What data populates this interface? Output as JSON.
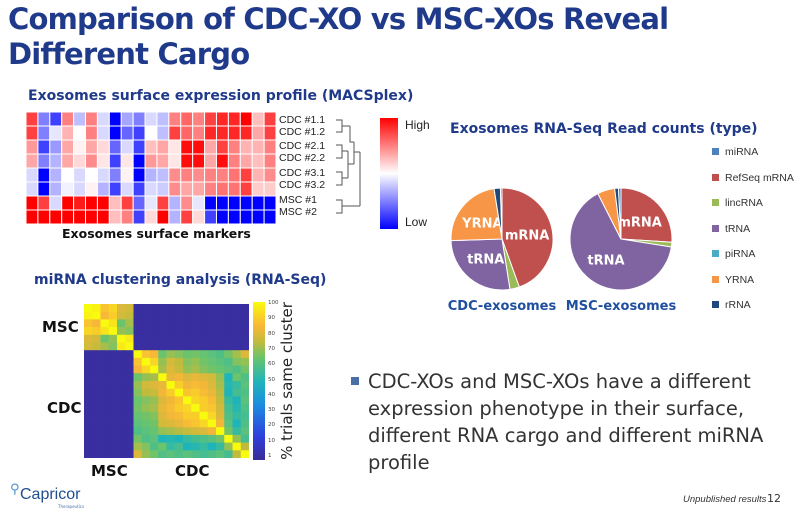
{
  "title": "Comparison of CDC-XO vs MSC-XOs Reveal Different Cargo",
  "macsplex": {
    "heading": "Exosomes surface expression profile (MACSplex)",
    "xlabel": "Exosomes surface markers",
    "scale_high": "High",
    "scale_low": "Low",
    "colors": {
      "high": "#ff0000",
      "mid": "#ffffff",
      "low": "#0000ff"
    }
  },
  "rnaseq": {
    "heading": "Exosomes RNA-Seq Read counts (type)",
    "legend": [
      {
        "label": "miRNA",
        "color": "#4f81bd"
      },
      {
        "label": "RefSeq mRNA",
        "color": "#c0504d"
      },
      {
        "label": "lincRNA",
        "color": "#9bbb59"
      },
      {
        "label": "tRNA",
        "color": "#8064a2"
      },
      {
        "label": "piRNA",
        "color": "#4bacc6"
      },
      {
        "label": "YRNA",
        "color": "#f79646"
      },
      {
        "label": "rRNA",
        "color": "#1f497d"
      }
    ]
  },
  "mirna": {
    "heading": "miRNA clustering analysis  (RNA-Seq)",
    "row_labels": [
      "MSC",
      "CDC"
    ],
    "col_labels": [
      "MSC",
      "CDC"
    ],
    "colorbar_label": "% trials same cluster",
    "colorbar_ticks": [
      "100",
      "90",
      "80",
      "70",
      "60",
      "50",
      "40",
      "30",
      "20",
      "10",
      "1"
    ]
  },
  "bullet": "CDC-XOs and MSC-XOs have a different expression phenotype in their surface, different RNA cargo and different miRNA profile",
  "footer": {
    "logo": "Capricor",
    "logo_sub": "Therapeutics",
    "note": "Unpublished results",
    "page": "12"
  },
  "chart_data": [
    {
      "type": "heatmap",
      "title": "Exosomes surface expression profile (MACSplex)",
      "xlabel": "Exosomes surface markers",
      "rows": [
        "CDC #1.1",
        "CDC #1.2",
        "CDC #2.1",
        "CDC #2.2",
        "CDC #3.1",
        "CDC #3.2",
        "MSC #1",
        "MSC #2"
      ],
      "range": [
        -2,
        2
      ],
      "values": [
        [
          1.5,
          -1,
          -1.5,
          1,
          -0.5,
          1,
          -0.3,
          -2,
          -0.7,
          -1,
          -0.3,
          -0.5,
          1,
          1.2,
          1,
          1.5,
          1.7,
          1.7,
          2,
          0.5,
          1.5
        ],
        [
          1.5,
          -1,
          -0.2,
          0.6,
          0,
          1,
          -0.3,
          -2,
          -1.2,
          -1.5,
          0,
          -0.5,
          1.5,
          1.2,
          1,
          1.7,
          1.7,
          1.7,
          1.7,
          0.7,
          1.5
        ],
        [
          0.8,
          -1.5,
          -0.8,
          0.7,
          0.1,
          0.7,
          0.3,
          -1.2,
          -0.3,
          -1.5,
          0.5,
          0.7,
          0.2,
          1.9,
          1.9,
          0.7,
          1.5,
          1,
          0.6,
          0.6,
          1
        ],
        [
          0.7,
          -1,
          -0.6,
          0.7,
          0.3,
          0.9,
          0.2,
          -1.5,
          0.2,
          -2,
          0.8,
          0.7,
          0.2,
          1.9,
          1.9,
          0.7,
          1.9,
          1,
          0.7,
          0.5,
          1
        ],
        [
          -0.3,
          -2,
          -0.6,
          0,
          -0.3,
          0,
          -0.3,
          -1,
          0.1,
          -2,
          -0.6,
          -0.5,
          0.9,
          1,
          0.9,
          1,
          1,
          1.1,
          1.5,
          0.6,
          0.9
        ],
        [
          -0.3,
          -2,
          -0.6,
          -0.1,
          -0.3,
          0.1,
          -0.6,
          -1.5,
          -0.3,
          -1.5,
          -0.3,
          -0.4,
          0.9,
          0.7,
          0.7,
          1,
          1.1,
          1.1,
          1.5,
          0.4,
          0.4
        ],
        [
          2,
          1.5,
          -0.3,
          2,
          1.8,
          2,
          2,
          0.5,
          1.5,
          -1.2,
          -0.2,
          1.5,
          -0.6,
          0.9,
          -0.2,
          -2,
          -2,
          -2,
          -2,
          -2,
          -2
        ],
        [
          2,
          2,
          2,
          2,
          2,
          2,
          2,
          0.5,
          1,
          -1.5,
          0.3,
          2,
          -0.6,
          1.5,
          0.3,
          -1.5,
          -2,
          -2,
          -2,
          -2,
          -2
        ]
      ]
    },
    {
      "type": "pie",
      "title": "CDC-exosomes",
      "labels": [
        "miRNA",
        "RefSeq mRNA",
        "lincRNA",
        "tRNA",
        "YRNA",
        "rRNA"
      ],
      "slice_text": {
        "RefSeq mRNA": "mRNA",
        "tRNA": "tRNA",
        "YRNA": "YRNA"
      },
      "values": [
        0.5,
        44.5,
        3,
        27,
        23,
        2
      ]
    },
    {
      "type": "pie",
      "title": "MSC-exosomes",
      "labels": [
        "miRNA",
        "RefSeq mRNA",
        "lincRNA",
        "tRNA",
        "YRNA",
        "rRNA"
      ],
      "slice_text": {
        "RefSeq mRNA": "mRNA",
        "tRNA": "tRNA"
      },
      "values": [
        0.8,
        26,
        1.5,
        65,
        5.5,
        1.2
      ]
    },
    {
      "type": "heatmap",
      "title": "miRNA clustering analysis  (RNA-Seq)",
      "groups": [
        {
          "name": "MSC",
          "n": 6
        },
        {
          "name": "CDC",
          "n": 14
        }
      ],
      "colorbar_label": "% trials same cluster",
      "range": [
        1,
        100
      ],
      "between_group_value": 3,
      "msc_block": [
        [
          100,
          98,
          88,
          92,
          80,
          78
        ],
        [
          98,
          100,
          85,
          90,
          78,
          76
        ],
        [
          88,
          85,
          100,
          95,
          65,
          72
        ],
        [
          92,
          90,
          95,
          100,
          70,
          68
        ],
        [
          80,
          78,
          65,
          70,
          100,
          96
        ],
        [
          78,
          76,
          72,
          68,
          96,
          100
        ]
      ],
      "cdc_block": [
        [
          100,
          88,
          85,
          65,
          70,
          68,
          65,
          66,
          64,
          62,
          60,
          66,
          72,
          80
        ],
        [
          88,
          100,
          92,
          70,
          78,
          75,
          68,
          70,
          66,
          64,
          62,
          60,
          68,
          70
        ],
        [
          85,
          92,
          100,
          72,
          80,
          76,
          70,
          72,
          68,
          66,
          64,
          62,
          60,
          66
        ],
        [
          65,
          70,
          72,
          100,
          82,
          84,
          80,
          82,
          80,
          78,
          70,
          50,
          65,
          60
        ],
        [
          70,
          78,
          80,
          82,
          100,
          90,
          84,
          86,
          84,
          80,
          72,
          52,
          55,
          62
        ],
        [
          68,
          75,
          76,
          84,
          90,
          100,
          88,
          90,
          86,
          82,
          74,
          50,
          58,
          60
        ],
        [
          65,
          68,
          70,
          80,
          84,
          88,
          100,
          92,
          90,
          86,
          76,
          55,
          50,
          62
        ],
        [
          66,
          70,
          72,
          82,
          86,
          90,
          92,
          100,
          90,
          88,
          78,
          58,
          52,
          60
        ],
        [
          64,
          66,
          68,
          80,
          84,
          86,
          90,
          90,
          100,
          92,
          80,
          60,
          55,
          58
        ],
        [
          62,
          64,
          66,
          78,
          80,
          82,
          86,
          88,
          92,
          100,
          84,
          62,
          50,
          60
        ],
        [
          60,
          62,
          64,
          70,
          72,
          74,
          76,
          78,
          80,
          84,
          100,
          66,
          55,
          62
        ],
        [
          66,
          60,
          62,
          50,
          52,
          50,
          55,
          58,
          60,
          62,
          66,
          100,
          70,
          58
        ],
        [
          72,
          68,
          60,
          65,
          55,
          58,
          50,
          52,
          55,
          50,
          55,
          70,
          100,
          75
        ],
        [
          80,
          70,
          66,
          60,
          62,
          60,
          62,
          60,
          58,
          60,
          62,
          58,
          75,
          100
        ]
      ]
    }
  ]
}
